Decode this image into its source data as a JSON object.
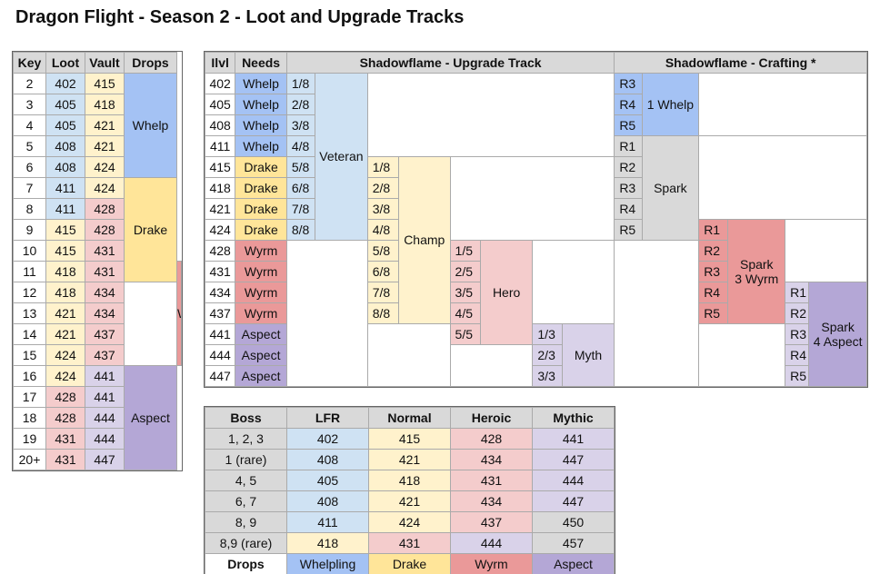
{
  "title": "Dragon Flight - Season 2 - Loot and Upgrade Tracks",
  "key_table": {
    "headers": [
      "Key",
      "Loot",
      "Vault",
      "Drops"
    ],
    "rows": [
      {
        "key": "2",
        "loot": "402",
        "vault": "415"
      },
      {
        "key": "3",
        "loot": "405",
        "vault": "418"
      },
      {
        "key": "4",
        "loot": "405",
        "vault": "421"
      },
      {
        "key": "5",
        "loot": "408",
        "vault": "421"
      },
      {
        "key": "6",
        "loot": "408",
        "vault": "424"
      },
      {
        "key": "7",
        "loot": "411",
        "vault": "424"
      },
      {
        "key": "8",
        "loot": "411",
        "vault": "428"
      },
      {
        "key": "9",
        "loot": "415",
        "vault": "428"
      },
      {
        "key": "10",
        "loot": "415",
        "vault": "431"
      },
      {
        "key": "11",
        "loot": "418",
        "vault": "431"
      },
      {
        "key": "12",
        "loot": "418",
        "vault": "434"
      },
      {
        "key": "13",
        "loot": "421",
        "vault": "434"
      },
      {
        "key": "14",
        "loot": "421",
        "vault": "437"
      },
      {
        "key": "15",
        "loot": "424",
        "vault": "437"
      },
      {
        "key": "16",
        "loot": "424",
        "vault": "441"
      },
      {
        "key": "17",
        "loot": "428",
        "vault": "441"
      },
      {
        "key": "18",
        "loot": "428",
        "vault": "444"
      },
      {
        "key": "19",
        "loot": "431",
        "vault": "444"
      },
      {
        "key": "20+",
        "loot": "431",
        "vault": "447"
      }
    ],
    "drops": [
      "Whelp",
      "Drake",
      "Wyrm",
      "Aspect"
    ]
  },
  "upgrade_table": {
    "headers": {
      "ilvl": "Ilvl",
      "needs": "Needs",
      "track": "Shadowflame - Upgrade Track",
      "crafting": "Shadowflame - Crafting *"
    },
    "rows": [
      {
        "ilvl": "402",
        "needs": "Whelp"
      },
      {
        "ilvl": "405",
        "needs": "Whelp"
      },
      {
        "ilvl": "408",
        "needs": "Whelp"
      },
      {
        "ilvl": "411",
        "needs": "Whelp"
      },
      {
        "ilvl": "415",
        "needs": "Drake"
      },
      {
        "ilvl": "418",
        "needs": "Drake"
      },
      {
        "ilvl": "421",
        "needs": "Drake"
      },
      {
        "ilvl": "424",
        "needs": "Drake"
      },
      {
        "ilvl": "428",
        "needs": "Wyrm"
      },
      {
        "ilvl": "431",
        "needs": "Wyrm"
      },
      {
        "ilvl": "434",
        "needs": "Wyrm"
      },
      {
        "ilvl": "437",
        "needs": "Wyrm"
      },
      {
        "ilvl": "441",
        "needs": "Aspect"
      },
      {
        "ilvl": "444",
        "needs": "Aspect"
      },
      {
        "ilvl": "447",
        "needs": "Aspect"
      }
    ],
    "tracks": {
      "veteran": {
        "name": "Veteran",
        "steps": [
          "1/8",
          "2/8",
          "3/8",
          "4/8",
          "5/8",
          "6/8",
          "7/8",
          "8/8"
        ]
      },
      "champ": {
        "name": "Champ",
        "steps": [
          "1/8",
          "2/8",
          "3/8",
          "4/8",
          "5/8",
          "6/8",
          "7/8",
          "8/8"
        ]
      },
      "hero": {
        "name": "Hero",
        "steps": [
          "1/5",
          "2/5",
          "3/5",
          "4/5",
          "5/5"
        ]
      },
      "myth": {
        "name": "Myth",
        "steps": [
          "1/3",
          "2/3",
          "3/3"
        ]
      }
    },
    "crafting": {
      "whelp": {
        "name": "1 Whelp",
        "ranks": [
          "R3",
          "R4",
          "R5"
        ]
      },
      "spark": {
        "name": "Spark",
        "ranks": [
          "R1",
          "R2",
          "R3",
          "R4",
          "R5"
        ]
      },
      "spark_wyrm": {
        "line1": "Spark",
        "line2": "3 Wyrm",
        "ranks": [
          "R1",
          "R2",
          "R3",
          "R4",
          "R5"
        ]
      },
      "spark_aspect": {
        "line1": "Spark",
        "line2": "4 Aspect",
        "ranks": [
          "R1",
          "R2",
          "R3",
          "R4",
          "R5"
        ]
      }
    }
  },
  "boss_table": {
    "headers": [
      "Boss",
      "LFR",
      "Normal",
      "Heroic",
      "Mythic"
    ],
    "rows": [
      {
        "boss": "1, 2, 3",
        "lfr": "402",
        "normal": "415",
        "heroic": "428",
        "mythic": "441"
      },
      {
        "boss": "1 (rare)",
        "lfr": "408",
        "normal": "421",
        "heroic": "434",
        "mythic": "447"
      },
      {
        "boss": "4, 5",
        "lfr": "405",
        "normal": "418",
        "heroic": "431",
        "mythic": "444"
      },
      {
        "boss": "6, 7",
        "lfr": "408",
        "normal": "421",
        "heroic": "434",
        "mythic": "447"
      },
      {
        "boss": "8, 9",
        "lfr": "411",
        "normal": "424",
        "heroic": "437",
        "mythic": "450"
      },
      {
        "boss": "8,9 (rare)",
        "lfr": "418",
        "normal": "431",
        "heroic": "444",
        "mythic": "457"
      }
    ],
    "drops_label": "Drops",
    "drops": [
      "Whelpling",
      "Drake",
      "Wyrm",
      "Aspect"
    ]
  }
}
